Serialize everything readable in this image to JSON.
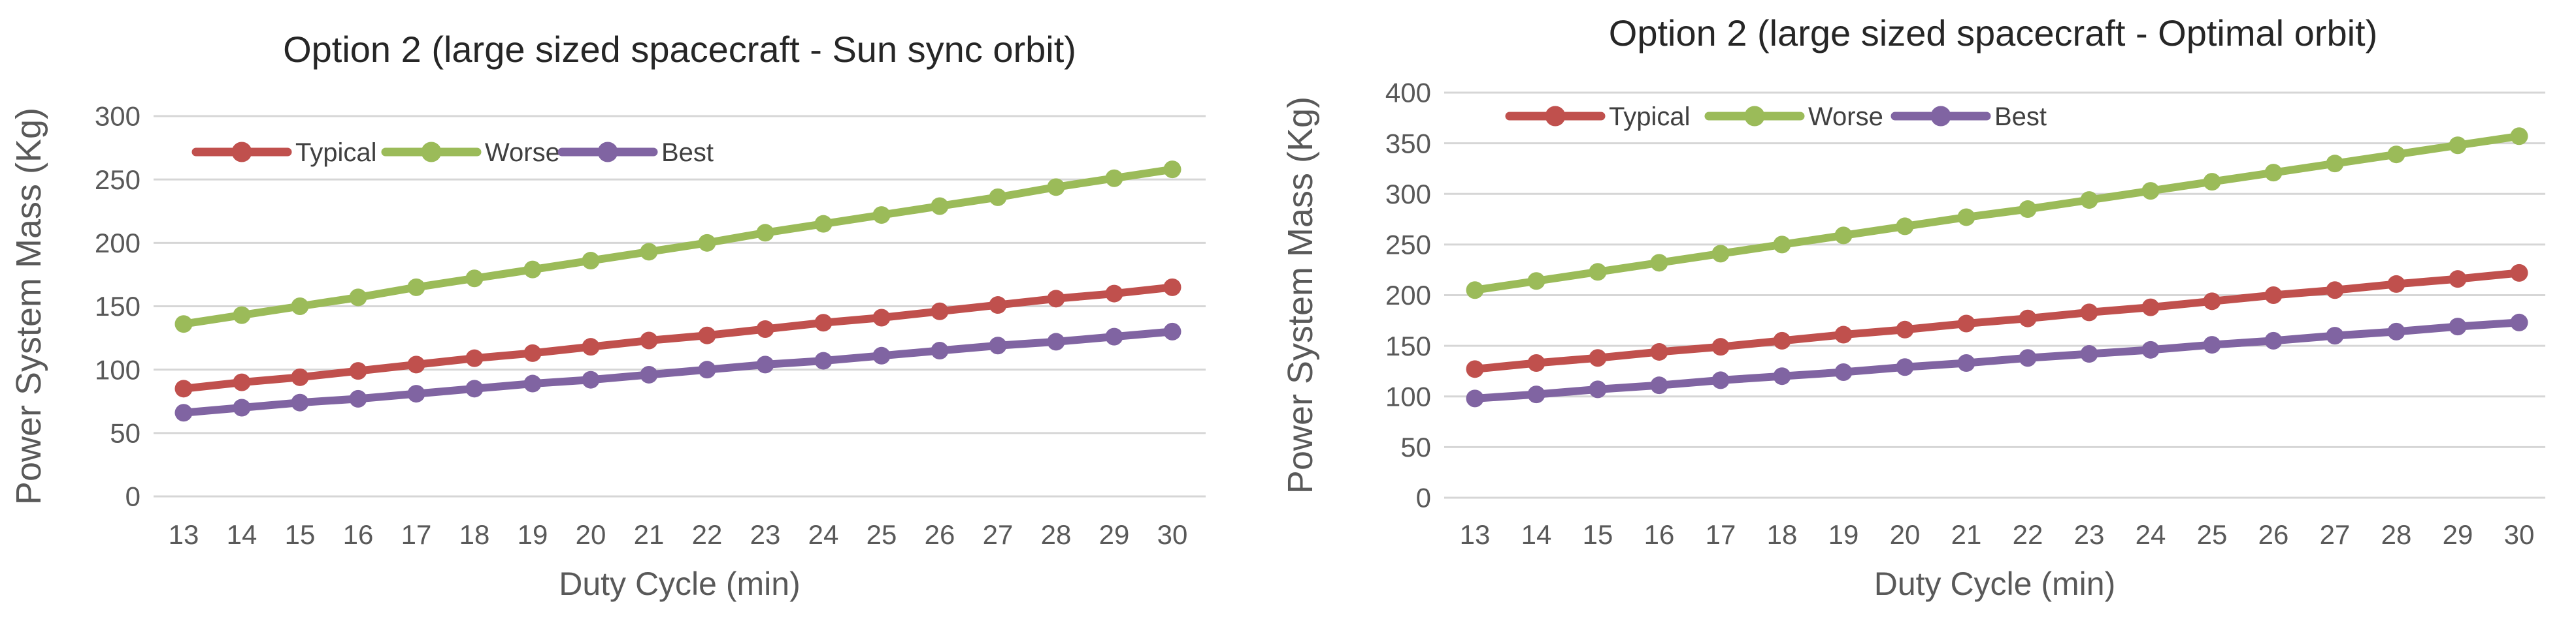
{
  "style": {
    "background": "#ffffff",
    "grid_color": "#d6d6d6",
    "tick_color": "#595959",
    "axis_title_color": "#595959",
    "title_color": "#262626",
    "legend_text_color": "#404040"
  },
  "chart_data": [
    {
      "type": "line",
      "title": "Option 2 (large sized spacecraft - Sun sync orbit)",
      "xlabel": "Duty Cycle (min)",
      "ylabel": "Power System Mass (Kg)",
      "x": [
        13,
        14,
        15,
        16,
        17,
        18,
        19,
        20,
        21,
        22,
        23,
        24,
        25,
        26,
        27,
        28,
        29,
        30
      ],
      "ylim": [
        0,
        300
      ],
      "yticks": [
        0,
        50,
        100,
        150,
        200,
        250,
        300
      ],
      "grid": true,
      "legend_position": "top-left-inside",
      "series": [
        {
          "name": "Typical",
          "color": "#c0504d",
          "values": [
            85,
            90,
            94,
            99,
            104,
            109,
            113,
            118,
            123,
            127,
            132,
            137,
            141,
            146,
            151,
            156,
            160,
            165
          ]
        },
        {
          "name": "Worse",
          "color": "#9bbb59",
          "values": [
            136,
            143,
            150,
            157,
            165,
            172,
            179,
            186,
            193,
            200,
            208,
            215,
            222,
            229,
            236,
            244,
            251,
            258
          ]
        },
        {
          "name": "Best",
          "color": "#8064a2",
          "values": [
            66,
            70,
            74,
            77,
            81,
            85,
            89,
            92,
            96,
            100,
            104,
            107,
            111,
            115,
            119,
            122,
            126,
            130
          ]
        }
      ]
    },
    {
      "type": "line",
      "title": "Option 2 (large sized spacecraft - Optimal orbit)",
      "xlabel": "Duty Cycle (min)",
      "ylabel": "Power System Mass (Kg)",
      "x": [
        13,
        14,
        15,
        16,
        17,
        18,
        19,
        20,
        21,
        22,
        23,
        24,
        25,
        26,
        27,
        28,
        29,
        30
      ],
      "ylim": [
        0,
        400
      ],
      "yticks": [
        0,
        50,
        100,
        150,
        200,
        250,
        300,
        350,
        400
      ],
      "grid": true,
      "legend_position": "top-left-inside",
      "series": [
        {
          "name": "Typical",
          "color": "#c0504d",
          "values": [
            127,
            133,
            138,
            144,
            149,
            155,
            161,
            166,
            172,
            177,
            183,
            188,
            194,
            200,
            205,
            211,
            216,
            222
          ]
        },
        {
          "name": "Worse",
          "color": "#9bbb59",
          "values": [
            205,
            214,
            223,
            232,
            241,
            250,
            259,
            268,
            277,
            285,
            294,
            303,
            312,
            321,
            330,
            339,
            348,
            357
          ]
        },
        {
          "name": "Best",
          "color": "#8064a2",
          "values": [
            98,
            102,
            107,
            111,
            116,
            120,
            124,
            129,
            133,
            138,
            142,
            146,
            151,
            155,
            160,
            164,
            169,
            173
          ]
        }
      ]
    }
  ]
}
